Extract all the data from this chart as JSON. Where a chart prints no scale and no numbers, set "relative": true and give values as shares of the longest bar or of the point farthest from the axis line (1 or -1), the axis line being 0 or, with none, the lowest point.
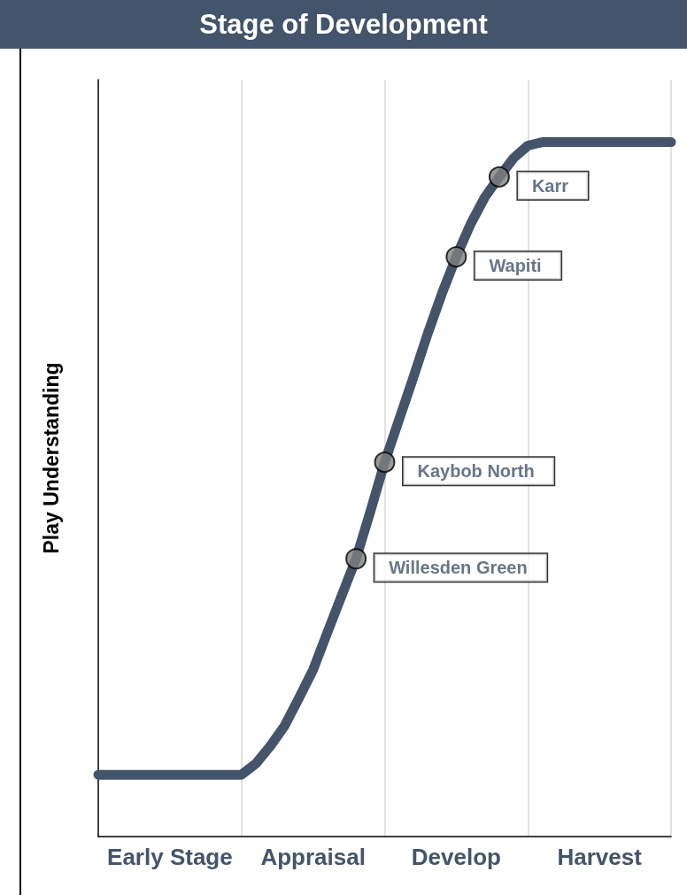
{
  "chart_data": {
    "type": "line",
    "title": "Stage of Development",
    "ylabel": "Play Understanding",
    "relative": true,
    "grid": "x",
    "categories": [
      null,
      null,
      null,
      null,
      null,
      "Early Stage",
      null,
      null,
      null,
      null,
      null,
      null,
      null,
      null,
      null,
      "Appraisal",
      null,
      null,
      null,
      null,
      null,
      null,
      null,
      null,
      null,
      "Develop",
      null,
      null,
      null,
      null,
      null,
      null,
      null,
      null,
      null,
      "Harvest",
      null,
      null,
      null,
      null,
      null
    ],
    "series": [
      {
        "color": "#44546a",
        "marker": "none",
        "values": [
          0.089,
          0.089,
          0.089,
          0.089,
          0.089,
          0.089,
          0.089,
          0.089,
          0.089,
          0.089,
          0.089,
          0.105,
          0.13,
          0.159,
          0.199,
          0.24,
          0.294,
          0.347,
          0.4,
          0.468,
          0.539,
          0.6,
          0.661,
          0.724,
          0.782,
          0.835,
          0.882,
          0.921,
          0.95,
          0.977,
          0.995,
          1.0,
          1.0,
          1.0,
          1.0,
          1.0,
          1.0,
          1.0,
          1.0,
          1.0,
          1.0
        ]
      },
      {
        "type": "scatter",
        "color": "#808080",
        "marker": "circle",
        "values": [
          null,
          null,
          null,
          null,
          null,
          null,
          null,
          null,
          null,
          null,
          null,
          null,
          null,
          null,
          null,
          null,
          null,
          null,
          0.4,
          null,
          0.539,
          null,
          null,
          null,
          null,
          0.835,
          null,
          null,
          0.95,
          null,
          null,
          null,
          null,
          null,
          null,
          null,
          null,
          null,
          null,
          null,
          null
        ]
      }
    ],
    "annotations": [
      "Willesden Green",
      "Kaybob North",
      "Wapiti",
      "Karr"
    ]
  }
}
